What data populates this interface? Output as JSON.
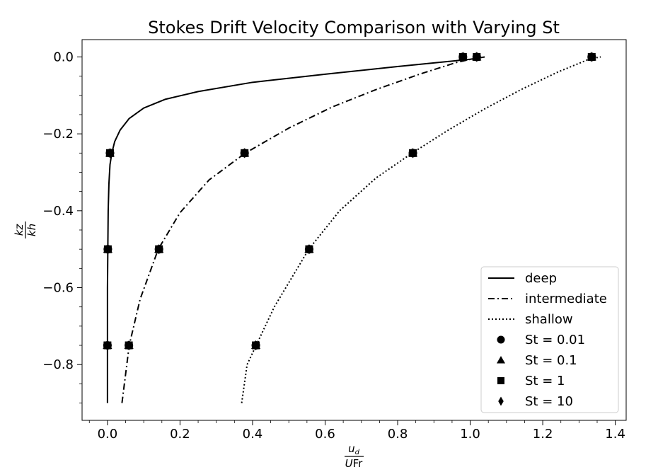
{
  "chart_data": {
    "type": "line",
    "title": "Stokes Drift Velocity Comparison with Varying St",
    "xlabel": {
      "numerator": "u_d",
      "denominator": "UFr"
    },
    "ylabel": {
      "numerator": "kz",
      "denominator": "kh"
    },
    "xlim": [
      -0.07,
      1.43
    ],
    "ylim": [
      -0.945,
      0.045
    ],
    "xticks": [
      0.0,
      0.2,
      0.4,
      0.6,
      0.8,
      1.0,
      1.2,
      1.4
    ],
    "xtick_labels": [
      "0.0",
      "0.2",
      "0.4",
      "0.6",
      "0.8",
      "1.0",
      "1.2",
      "1.4"
    ],
    "yticks": [
      0.0,
      -0.2,
      -0.4,
      -0.6,
      -0.8
    ],
    "ytick_labels": [
      "0.0",
      "−0.2",
      "−0.4",
      "−0.6",
      "−0.8"
    ],
    "grid": false,
    "legend_position": "lower-right",
    "series": [
      {
        "name": "deep",
        "style": "solid",
        "color": "#000000",
        "x": [
          0.0,
          0.0,
          0.0,
          0.0,
          0.0,
          0.0,
          0.001,
          0.002,
          0.004,
          0.007,
          0.012,
          0.02,
          0.035,
          0.06,
          0.1,
          0.16,
          0.25,
          0.4,
          0.6,
          0.8,
          1.0,
          1.04
        ],
        "y": [
          -0.9,
          -0.85,
          -0.8,
          -0.75,
          -0.7,
          -0.6,
          -0.5,
          -0.4,
          -0.33,
          -0.28,
          -0.25,
          -0.22,
          -0.19,
          -0.16,
          -0.133,
          -0.11,
          -0.09,
          -0.066,
          -0.045,
          -0.025,
          -0.006,
          0.0
        ]
      },
      {
        "name": "intermediate",
        "style": "dashdot",
        "color": "#000000",
        "x": [
          0.04,
          0.06,
          0.09,
          0.14,
          0.2,
          0.28,
          0.38,
          0.5,
          0.62,
          0.74,
          0.86,
          0.96,
          1.03
        ],
        "y": [
          -0.9,
          -0.75,
          -0.63,
          -0.5,
          -0.405,
          -0.32,
          -0.25,
          -0.185,
          -0.13,
          -0.085,
          -0.045,
          -0.015,
          0.0
        ]
      },
      {
        "name": "shallow",
        "style": "dotted",
        "color": "#000000",
        "x": [
          0.37,
          0.385,
          0.41,
          0.46,
          0.555,
          0.64,
          0.74,
          0.84,
          0.94,
          1.04,
          1.14,
          1.24,
          1.33,
          1.36
        ],
        "y": [
          -0.9,
          -0.8,
          -0.75,
          -0.65,
          -0.5,
          -0.4,
          -0.315,
          -0.25,
          -0.19,
          -0.135,
          -0.085,
          -0.04,
          -0.005,
          0.0
        ]
      }
    ],
    "markers": [
      {
        "name": "St = 0.01",
        "shape": "circle"
      },
      {
        "name": "St = 0.1",
        "shape": "triangle"
      },
      {
        "name": "St = 1",
        "shape": "square"
      },
      {
        "name": "St = 10",
        "shape": "diamond"
      }
    ],
    "marker_points": [
      {
        "x": 0.007,
        "y": -0.25
      },
      {
        "x": 0.001,
        "y": -0.5
      },
      {
        "x": 0.0,
        "y": -0.75
      },
      {
        "x": 0.98,
        "y": 0.0
      },
      {
        "x": 0.378,
        "y": -0.25
      },
      {
        "x": 0.142,
        "y": -0.5
      },
      {
        "x": 0.059,
        "y": -0.75
      },
      {
        "x": 1.018,
        "y": 0.0
      },
      {
        "x": 0.842,
        "y": -0.25
      },
      {
        "x": 0.556,
        "y": -0.5
      },
      {
        "x": 0.409,
        "y": -0.75
      },
      {
        "x": 1.335,
        "y": 0.0
      }
    ]
  }
}
